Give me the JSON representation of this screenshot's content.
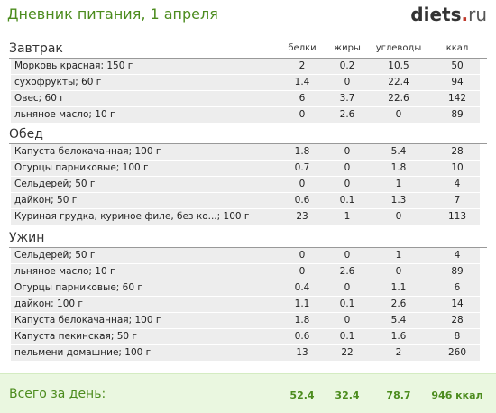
{
  "header": {
    "title": "Дневник питания, 1 апреля",
    "logo_main": "diets",
    "logo_dot": ".",
    "logo_tld": "ru"
  },
  "columns": {
    "protein": "белки",
    "fat": "жиры",
    "carbs": "углеводы",
    "kcal": "ккал"
  },
  "sections": [
    {
      "title": "Завтрак",
      "rows": [
        {
          "name": "Морковь красная; 150 г",
          "protein": "2",
          "fat": "0.2",
          "carbs": "10.5",
          "kcal": "50"
        },
        {
          "name": "сухофрукты; 60 г",
          "protein": "1.4",
          "fat": "0",
          "carbs": "22.4",
          "kcal": "94"
        },
        {
          "name": "Овес; 60 г",
          "protein": "6",
          "fat": "3.7",
          "carbs": "22.6",
          "kcal": "142"
        },
        {
          "name": "льняное масло; 10 г",
          "protein": "0",
          "fat": "2.6",
          "carbs": "0",
          "kcal": "89"
        }
      ]
    },
    {
      "title": "Обед",
      "rows": [
        {
          "name": "Капуста белокачанная; 100 г",
          "protein": "1.8",
          "fat": "0",
          "carbs": "5.4",
          "kcal": "28"
        },
        {
          "name": "Огурцы парниковые; 100 г",
          "protein": "0.7",
          "fat": "0",
          "carbs": "1.8",
          "kcal": "10"
        },
        {
          "name": "Сельдерей; 50 г",
          "protein": "0",
          "fat": "0",
          "carbs": "1",
          "kcal": "4"
        },
        {
          "name": "дайкон; 50 г",
          "protein": "0.6",
          "fat": "0.1",
          "carbs": "1.3",
          "kcal": "7"
        },
        {
          "name": "Куриная грудка, куриное филе, без ко...; 100 г",
          "protein": "23",
          "fat": "1",
          "carbs": "0",
          "kcal": "113"
        }
      ]
    },
    {
      "title": "Ужин",
      "rows": [
        {
          "name": "Сельдерей; 50 г",
          "protein": "0",
          "fat": "0",
          "carbs": "1",
          "kcal": "4"
        },
        {
          "name": "льняное масло; 10 г",
          "protein": "0",
          "fat": "2.6",
          "carbs": "0",
          "kcal": "89"
        },
        {
          "name": "Огурцы парниковые; 60 г",
          "protein": "0.4",
          "fat": "0",
          "carbs": "1.1",
          "kcal": "6"
        },
        {
          "name": "дайкон; 100 г",
          "protein": "1.1",
          "fat": "0.1",
          "carbs": "2.6",
          "kcal": "14"
        },
        {
          "name": "Капуста белокачанная; 100 г",
          "protein": "1.8",
          "fat": "0",
          "carbs": "5.4",
          "kcal": "28"
        },
        {
          "name": "Капуста пекинская; 50 г",
          "protein": "0.6",
          "fat": "0.1",
          "carbs": "1.6",
          "kcal": "8"
        },
        {
          "name": "пельмени домашние; 100 г",
          "protein": "13",
          "fat": "22",
          "carbs": "2",
          "kcal": "260"
        }
      ]
    }
  ],
  "footer": {
    "label": "Всего за день:",
    "protein": "52.4",
    "fat": "32.4",
    "carbs": "78.7",
    "kcal": "946 ккал"
  },
  "colors": {
    "accent": "#4c8c1e",
    "row_bg": "#ededed",
    "footer_bg": "#eaf7e0",
    "logo_dot": "#c0392b"
  }
}
